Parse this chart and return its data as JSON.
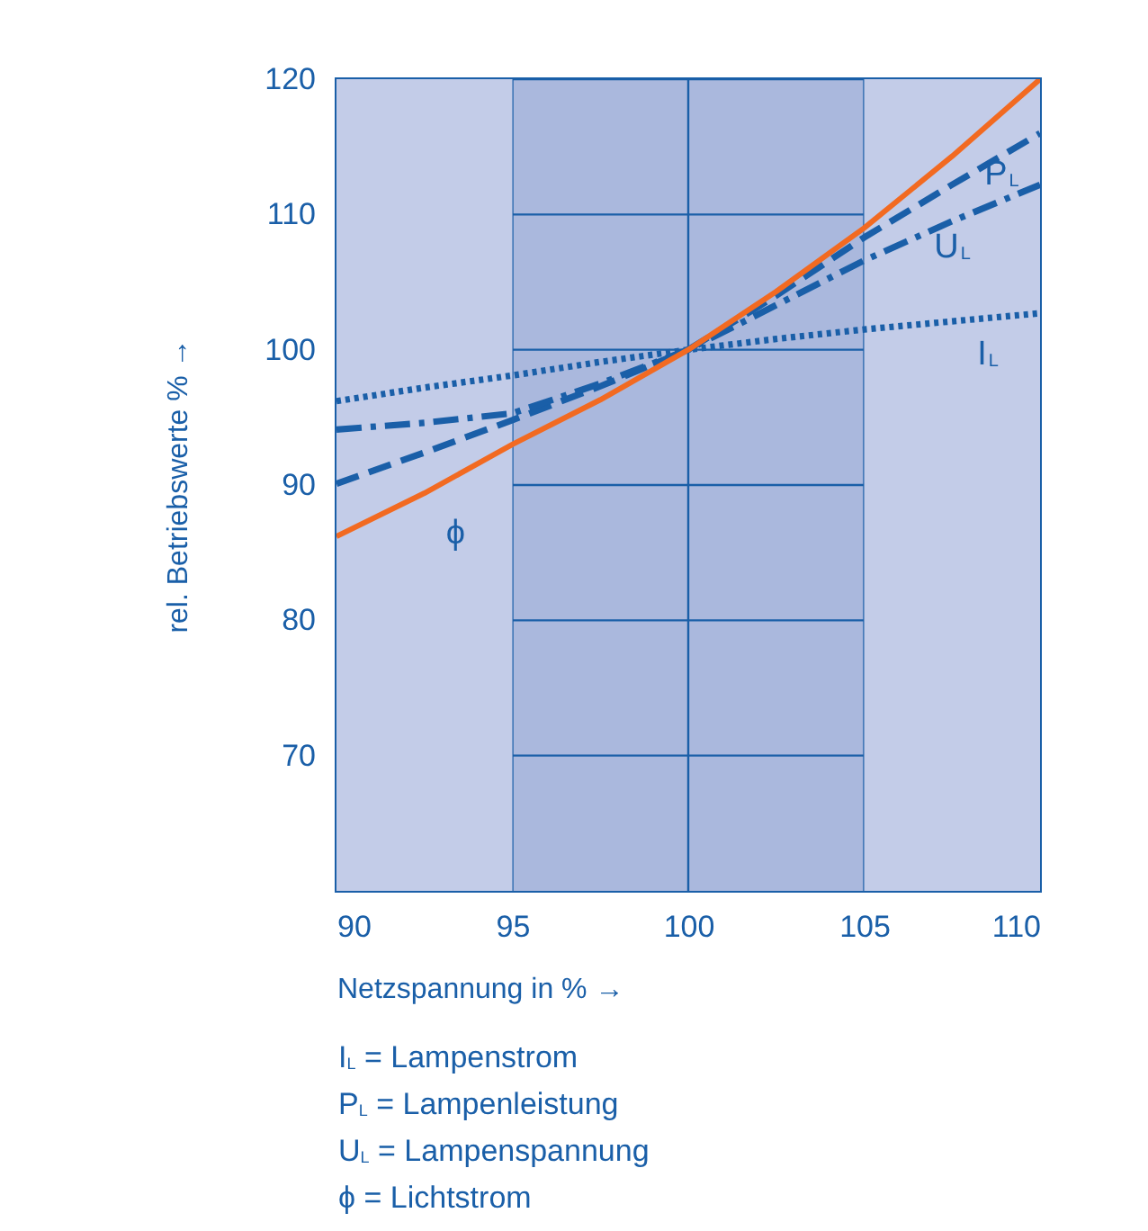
{
  "chart_data": {
    "type": "line",
    "xlabel": "Netzspannung in % →",
    "ylabel": "rel. Betriebswerte % →",
    "x": [
      90,
      92.5,
      95,
      97.5,
      100,
      102.5,
      105,
      107.5,
      110
    ],
    "series": [
      {
        "name": "P$_{L}$",
        "color": "#1a5fa8",
        "line_style": "dashed",
        "values": [
          90.1,
          92.4,
          94.8,
          97.3,
          100,
          104,
          108.3,
          112.2,
          116
        ]
      },
      {
        "name": "U$_{L}$",
        "color": "#1a5fa8",
        "line_style": "dashdot",
        "values": [
          94.1,
          94.6,
          95.3,
          97.5,
          100,
          103.3,
          106.6,
          109.5,
          112.2
        ]
      },
      {
        "name": "I$_{L}$",
        "color": "#1a5fa8",
        "line_style": "dotted",
        "values": [
          96.2,
          97.2,
          98.1,
          99.1,
          100,
          100.8,
          101.5,
          102.1,
          102.7
        ]
      },
      {
        "name": "ϕ",
        "color": "#f26a21",
        "line_style": "solid",
        "values": [
          86.2,
          89.4,
          93,
          96.3,
          100,
          104.3,
          109,
          114.3,
          120
        ]
      }
    ],
    "xlim": [
      90,
      110
    ],
    "xticks": [
      90,
      95,
      100,
      105,
      110
    ],
    "ylim": [
      60,
      120
    ],
    "yticks": [
      70,
      80,
      90,
      100,
      110,
      120
    ],
    "grid": true,
    "bands": [
      {
        "axis": "x",
        "from": 90,
        "to": 95,
        "color": "#c3cce8"
      },
      {
        "axis": "x",
        "from": 95,
        "to": 105,
        "color": "#aab8dd"
      },
      {
        "axis": "x",
        "from": 105,
        "to": 110,
        "color": "#c3cce8"
      }
    ],
    "annotations": [
      "I$_{L}$ = Lampenstrom",
      "P$_{L}$ = Lampenleistung",
      "U$_{L}$ = Lampenspannung",
      "ϕ = Lichtstrom"
    ]
  }
}
